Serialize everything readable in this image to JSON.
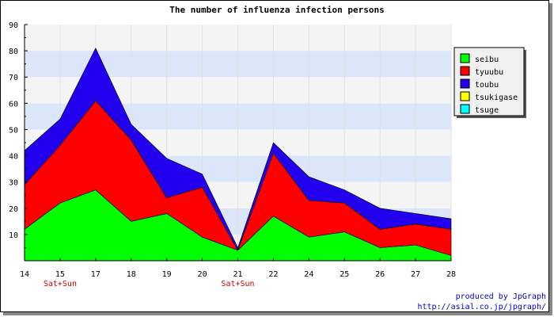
{
  "chart_data": {
    "type": "area",
    "stacked": true,
    "title": "The number of influenza infection persons",
    "x": [
      "14",
      "15",
      "17",
      "18",
      "19",
      "20",
      "21",
      "22",
      "24",
      "25",
      "26",
      "27",
      "28"
    ],
    "x_annotations": [
      {
        "x": "15",
        "text": "Sat+Sun"
      },
      {
        "x": "21",
        "text": "Sat+Sun"
      }
    ],
    "ylim": [
      0,
      90
    ],
    "yticks": [
      10,
      20,
      30,
      40,
      50,
      60,
      70,
      80,
      90
    ],
    "grid": true,
    "band_colors": [
      "#f4f4f4",
      "#dce6fa"
    ],
    "legend_position": "top-right",
    "series": [
      {
        "name": "seibu",
        "color": "#00ff00",
        "values": [
          12,
          22,
          27,
          15,
          18,
          9,
          4,
          17,
          9,
          11,
          5,
          6,
          2
        ]
      },
      {
        "name": "tyuubu",
        "color": "#ff0000",
        "values": [
          17,
          22,
          34,
          31,
          6,
          19,
          0,
          24,
          14,
          11,
          7,
          8,
          10
        ]
      },
      {
        "name": "toubu",
        "color": "#2200ee",
        "values": [
          13,
          10,
          20,
          6,
          15,
          5,
          1,
          4,
          9,
          5,
          8,
          4,
          4
        ]
      },
      {
        "name": "tsukigase",
        "color": "#ffff00",
        "values": [
          0,
          0,
          0,
          0,
          0,
          0,
          0,
          0,
          0,
          0,
          0,
          0,
          0
        ]
      },
      {
        "name": "tsuge",
        "color": "#00ffff",
        "values": [
          0,
          0,
          0,
          0,
          0,
          0,
          0,
          0,
          0,
          0,
          0,
          0,
          0
        ]
      }
    ]
  },
  "credits": {
    "line1": "produced by JpGraph",
    "line2": "http://asial.co.jp/jpgraph/"
  }
}
